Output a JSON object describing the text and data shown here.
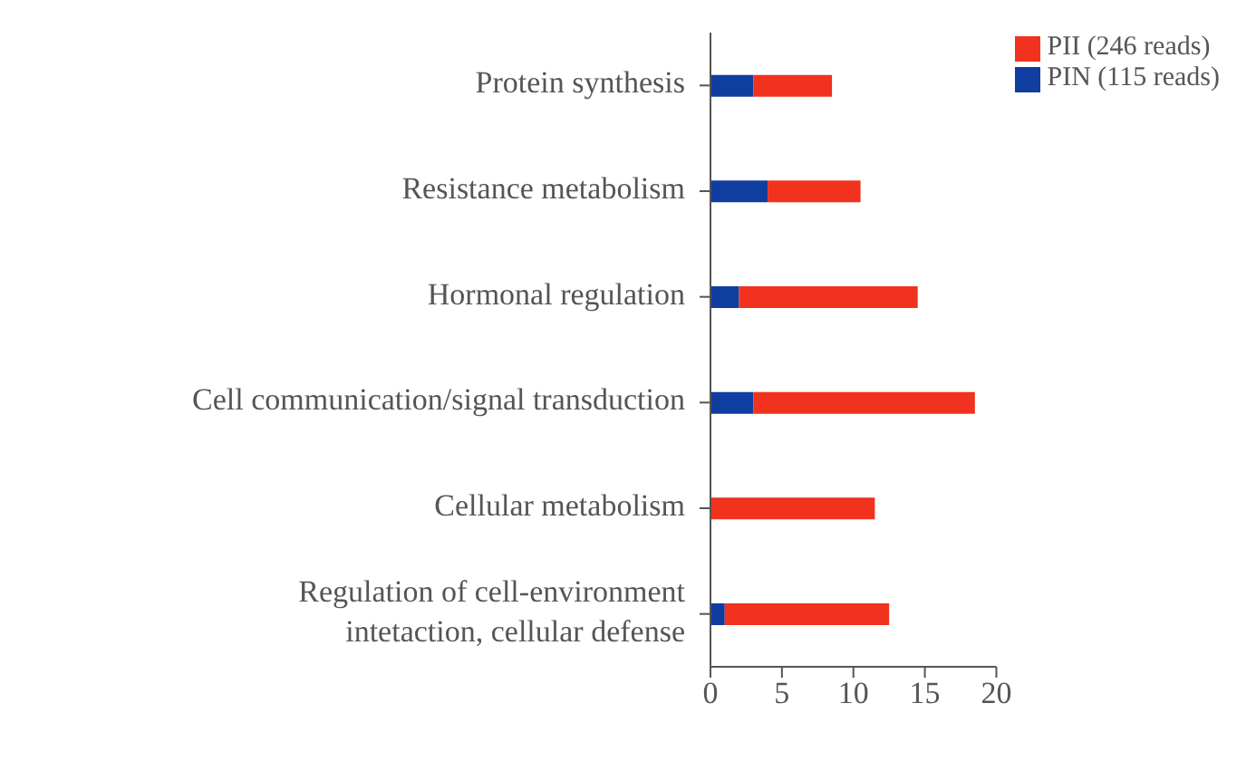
{
  "chart_data": {
    "type": "bar",
    "orientation": "horizontal",
    "stacked": true,
    "categories": [
      "Protein synthesis",
      "Resistance metabolism",
      "Hormonal regulation",
      "Cell communication/signal transduction",
      "Cellular metabolism",
      "Regulation of cell-environment intetaction, cellular defense"
    ],
    "series": [
      {
        "name": "PIN (115 reads)",
        "color": "#0f3da0",
        "values": [
          3,
          4,
          2,
          3,
          0,
          1
        ]
      },
      {
        "name": "PII (246 reads)",
        "color": "#f0321e",
        "values": [
          5.5,
          6.5,
          12.5,
          15.5,
          11.5,
          11.5
        ]
      }
    ],
    "xlim": [
      0,
      20
    ],
    "xticks": [
      0,
      5,
      10,
      15,
      20
    ],
    "legend": "top right",
    "grid": false
  }
}
